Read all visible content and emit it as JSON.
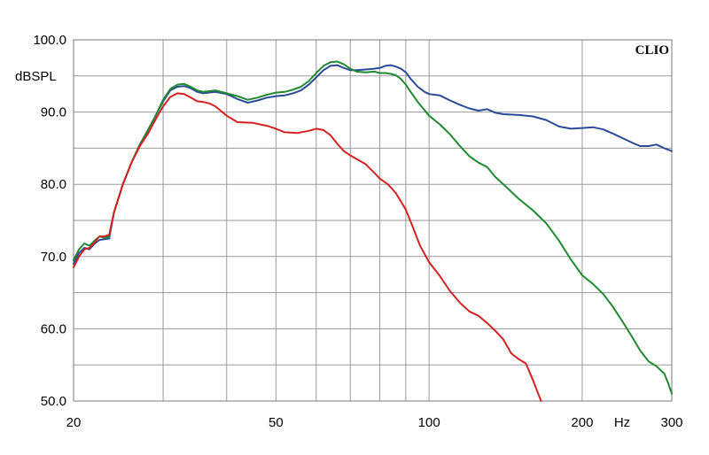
{
  "chart_data": {
    "type": "line",
    "brand": "CLIO",
    "ylabel": "dBSPL",
    "xunit": "Hz",
    "xscale": "log",
    "xlim": [
      20,
      300
    ],
    "ylim": [
      50,
      100
    ],
    "grid": true,
    "x_ticks": [
      {
        "value": 20,
        "label": "20"
      },
      {
        "value": 50,
        "label": "50"
      },
      {
        "value": 100,
        "label": "100"
      },
      {
        "value": 200,
        "label": "200"
      },
      {
        "value": 300,
        "label": "300"
      }
    ],
    "x_grid": [
      20,
      30,
      40,
      50,
      60,
      70,
      80,
      90,
      100,
      200,
      300
    ],
    "y_ticks": [
      {
        "value": 50,
        "label": "50.0"
      },
      {
        "value": 60,
        "label": "60.0"
      },
      {
        "value": 70,
        "label": "70.0"
      },
      {
        "value": 80,
        "label": "80.0"
      },
      {
        "value": 90,
        "label": "90.0"
      },
      {
        "value": 100,
        "label": "100.0"
      }
    ],
    "y_grid": [
      50,
      55,
      60,
      65,
      70,
      75,
      80,
      85,
      90,
      95,
      100
    ],
    "series": [
      {
        "color": "#2b4a9a",
        "points": [
          [
            20,
            69.0
          ],
          [
            20.5,
            70.5
          ],
          [
            21,
            71.2
          ],
          [
            21.5,
            71.0
          ],
          [
            22,
            71.8
          ],
          [
            22.5,
            72.3
          ],
          [
            23,
            72.4
          ],
          [
            23.5,
            72.5
          ],
          [
            24,
            76
          ],
          [
            25,
            80
          ],
          [
            26,
            83
          ],
          [
            27,
            85.5
          ],
          [
            28,
            87.5
          ],
          [
            29,
            89.5
          ],
          [
            30,
            91.5
          ],
          [
            31,
            93.0
          ],
          [
            32,
            93.5
          ],
          [
            33,
            93.6
          ],
          [
            34,
            93.3
          ],
          [
            35,
            92.8
          ],
          [
            36,
            92.6
          ],
          [
            38,
            92.8
          ],
          [
            40,
            92.5
          ],
          [
            42,
            91.8
          ],
          [
            44,
            91.3
          ],
          [
            46,
            91.6
          ],
          [
            48,
            92.0
          ],
          [
            50,
            92.2
          ],
          [
            52,
            92.3
          ],
          [
            54,
            92.6
          ],
          [
            56,
            93.0
          ],
          [
            58,
            93.8
          ],
          [
            60,
            94.8
          ],
          [
            62,
            95.8
          ],
          [
            64,
            96.4
          ],
          [
            66,
            96.5
          ],
          [
            68,
            96.1
          ],
          [
            70,
            95.8
          ],
          [
            72,
            95.8
          ],
          [
            75,
            95.9
          ],
          [
            78,
            96.0
          ],
          [
            80,
            96.1
          ],
          [
            82,
            96.4
          ],
          [
            84,
            96.5
          ],
          [
            86,
            96.3
          ],
          [
            88,
            96.0
          ],
          [
            90,
            95.5
          ],
          [
            92,
            94.6
          ],
          [
            95,
            93.5
          ],
          [
            98,
            92.8
          ],
          [
            100,
            92.5
          ],
          [
            105,
            92.3
          ],
          [
            110,
            91.6
          ],
          [
            115,
            91.0
          ],
          [
            120,
            90.5
          ],
          [
            125,
            90.2
          ],
          [
            130,
            90.4
          ],
          [
            135,
            89.9
          ],
          [
            140,
            89.7
          ],
          [
            150,
            89.6
          ],
          [
            160,
            89.4
          ],
          [
            170,
            88.9
          ],
          [
            180,
            88.0
          ],
          [
            190,
            87.7
          ],
          [
            200,
            87.8
          ],
          [
            210,
            87.9
          ],
          [
            220,
            87.6
          ],
          [
            230,
            87.0
          ],
          [
            240,
            86.4
          ],
          [
            250,
            85.8
          ],
          [
            260,
            85.3
          ],
          [
            270,
            85.3
          ],
          [
            280,
            85.5
          ],
          [
            290,
            85.0
          ],
          [
            300,
            84.6
          ]
        ]
      },
      {
        "color": "#1f8a30",
        "points": [
          [
            20,
            69.5
          ],
          [
            20.5,
            71.0
          ],
          [
            21,
            71.8
          ],
          [
            21.5,
            71.5
          ],
          [
            22,
            72.2
          ],
          [
            22.5,
            72.8
          ],
          [
            23,
            72.6
          ],
          [
            23.5,
            72.8
          ],
          [
            24,
            76
          ],
          [
            25,
            80
          ],
          [
            26,
            83
          ],
          [
            27,
            85.5
          ],
          [
            28,
            87.5
          ],
          [
            29,
            89.5
          ],
          [
            30,
            91.7
          ],
          [
            31,
            93.2
          ],
          [
            32,
            93.8
          ],
          [
            33,
            93.9
          ],
          [
            34,
            93.5
          ],
          [
            35,
            93.0
          ],
          [
            36,
            92.8
          ],
          [
            38,
            93.0
          ],
          [
            40,
            92.6
          ],
          [
            42,
            92.2
          ],
          [
            44,
            91.7
          ],
          [
            46,
            92.0
          ],
          [
            48,
            92.4
          ],
          [
            50,
            92.7
          ],
          [
            52,
            92.8
          ],
          [
            54,
            93.1
          ],
          [
            56,
            93.5
          ],
          [
            58,
            94.3
          ],
          [
            60,
            95.4
          ],
          [
            62,
            96.4
          ],
          [
            64,
            96.9
          ],
          [
            66,
            97.0
          ],
          [
            68,
            96.6
          ],
          [
            70,
            96.0
          ],
          [
            72,
            95.6
          ],
          [
            75,
            95.5
          ],
          [
            78,
            95.6
          ],
          [
            80,
            95.4
          ],
          [
            82,
            95.4
          ],
          [
            84,
            95.3
          ],
          [
            86,
            95.1
          ],
          [
            88,
            94.6
          ],
          [
            90,
            93.8
          ],
          [
            92,
            92.8
          ],
          [
            95,
            91.4
          ],
          [
            100,
            89.5
          ],
          [
            105,
            88.3
          ],
          [
            110,
            86.9
          ],
          [
            115,
            85.3
          ],
          [
            120,
            83.9
          ],
          [
            125,
            83.0
          ],
          [
            130,
            82.4
          ],
          [
            135,
            81.0
          ],
          [
            140,
            80.0
          ],
          [
            150,
            78.0
          ],
          [
            160,
            76.4
          ],
          [
            170,
            74.6
          ],
          [
            180,
            72.2
          ],
          [
            190,
            69.6
          ],
          [
            200,
            67.4
          ],
          [
            210,
            66.2
          ],
          [
            220,
            64.8
          ],
          [
            230,
            63.0
          ],
          [
            240,
            61.0
          ],
          [
            250,
            59.0
          ],
          [
            260,
            57.0
          ],
          [
            270,
            55.5
          ],
          [
            280,
            54.8
          ],
          [
            290,
            53.8
          ],
          [
            295,
            52.5
          ],
          [
            300,
            51.0
          ]
        ]
      },
      {
        "color": "#d42222",
        "points": [
          [
            20,
            68.5
          ],
          [
            20.5,
            70.0
          ],
          [
            21,
            71.0
          ],
          [
            21.5,
            71.2
          ],
          [
            22,
            72.0
          ],
          [
            22.5,
            72.8
          ],
          [
            23,
            72.8
          ],
          [
            23.5,
            73.0
          ],
          [
            24,
            76
          ],
          [
            25,
            80
          ],
          [
            26,
            83
          ],
          [
            27,
            85.3
          ],
          [
            28,
            87.0
          ],
          [
            29,
            89.0
          ],
          [
            30,
            90.8
          ],
          [
            31,
            92.1
          ],
          [
            32,
            92.6
          ],
          [
            33,
            92.5
          ],
          [
            34,
            92.0
          ],
          [
            35,
            91.5
          ],
          [
            36,
            91.4
          ],
          [
            37,
            91.2
          ],
          [
            38,
            90.8
          ],
          [
            40,
            89.5
          ],
          [
            42,
            88.6
          ],
          [
            45,
            88.5
          ],
          [
            48,
            88.1
          ],
          [
            50,
            87.7
          ],
          [
            52,
            87.2
          ],
          [
            55,
            87.1
          ],
          [
            58,
            87.4
          ],
          [
            60,
            87.7
          ],
          [
            62,
            87.5
          ],
          [
            64,
            86.8
          ],
          [
            66,
            85.6
          ],
          [
            68,
            84.6
          ],
          [
            70,
            84.0
          ],
          [
            72,
            83.5
          ],
          [
            75,
            82.8
          ],
          [
            78,
            81.6
          ],
          [
            80,
            80.8
          ],
          [
            83,
            80.0
          ],
          [
            86,
            78.8
          ],
          [
            90,
            76.5
          ],
          [
            93,
            74.0
          ],
          [
            96,
            71.5
          ],
          [
            100,
            69.2
          ],
          [
            105,
            67.3
          ],
          [
            110,
            65.2
          ],
          [
            115,
            63.6
          ],
          [
            120,
            62.4
          ],
          [
            125,
            61.8
          ],
          [
            130,
            60.8
          ],
          [
            135,
            59.7
          ],
          [
            140,
            58.5
          ],
          [
            145,
            56.6
          ],
          [
            150,
            55.8
          ],
          [
            155,
            55.2
          ],
          [
            160,
            52.9
          ],
          [
            166,
            50.0
          ]
        ]
      }
    ]
  }
}
